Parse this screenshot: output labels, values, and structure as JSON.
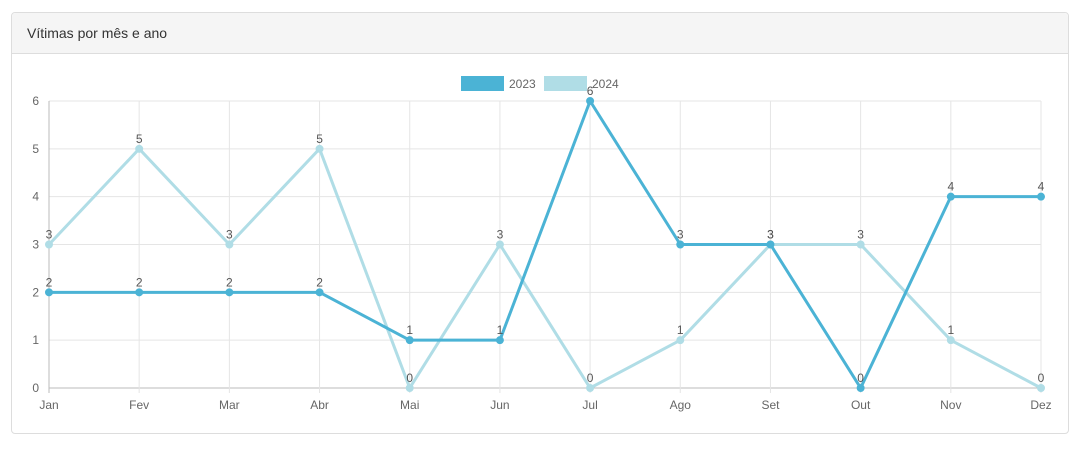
{
  "panel": {
    "title": "Vítimas por mês e ano"
  },
  "chart_data": {
    "type": "line",
    "categories": [
      "Jan",
      "Fev",
      "Mar",
      "Abr",
      "Mai",
      "Jun",
      "Jul",
      "Ago",
      "Set",
      "Out",
      "Nov",
      "Dez"
    ],
    "series": [
      {
        "name": "2023",
        "values": [
          2,
          2,
          2,
          2,
          1,
          1,
          6,
          3,
          3,
          0,
          4,
          4
        ],
        "color": "#4bb3d5"
      },
      {
        "name": "2024",
        "values": [
          3,
          5,
          3,
          5,
          0,
          3,
          0,
          1,
          3,
          3,
          1,
          0
        ],
        "color": "#b0dde6"
      }
    ],
    "ylim": [
      0,
      6
    ],
    "yticks": [
      0,
      1,
      2,
      3,
      4,
      5,
      6
    ],
    "grid": true,
    "legend": "top-center",
    "data_labels": true
  }
}
